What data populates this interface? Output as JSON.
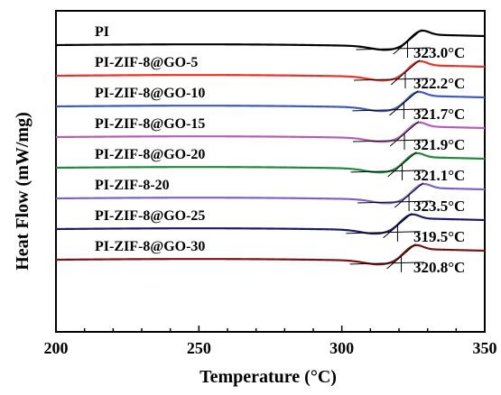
{
  "chart_data": {
    "type": "line",
    "xlabel": "Temperature (°C)",
    "ylabel": "Heat Flow (mW/mg)",
    "xlim": [
      200,
      350
    ],
    "x_ticks": [
      "200",
      "250",
      "300",
      "350"
    ],
    "grid": false,
    "legend": "inline labels above each curve",
    "series": [
      {
        "name": "PI",
        "color": "#000000",
        "tg": 323.0,
        "tg_label": "323.0°C",
        "offset": 0
      },
      {
        "name": "PI-ZIF-8@GO-5",
        "color": "#e8322a",
        "tg": 322.2,
        "tg_label": "322.2°C",
        "offset": 1
      },
      {
        "name": "PI-ZIF-8@GO-10",
        "color": "#3d5bb5",
        "tg": 321.7,
        "tg_label": "321.7°C",
        "offset": 2
      },
      {
        "name": "PI-ZIF-8@GO-15",
        "color": "#b95cb8",
        "tg": 321.9,
        "tg_label": "321.9°C",
        "offset": 3
      },
      {
        "name": "PI-ZIF-8@GO-20",
        "color": "#1f8a3c",
        "tg": 321.1,
        "tg_label": "321.1°C",
        "offset": 4
      },
      {
        "name": "PI-ZIF-8-20",
        "color": "#7b63c6",
        "tg": 323.5,
        "tg_label": "323.5°C",
        "offset": 5
      },
      {
        "name": "PI-ZIF-8@GO-25",
        "color": "#1c1a6b",
        "tg": 319.5,
        "tg_label": "319.5°C",
        "offset": 6
      },
      {
        "name": "PI-ZIF-8@GO-30",
        "color": "#7a1414",
        "tg": 320.8,
        "tg_label": "320.8°C",
        "offset": 7
      }
    ]
  }
}
